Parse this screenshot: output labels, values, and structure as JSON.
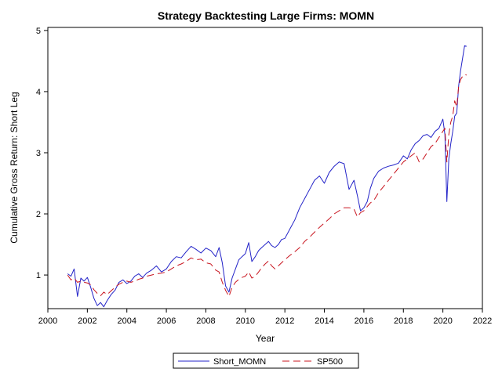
{
  "chart_data": {
    "type": "line",
    "title": "Strategy Backtesting Large Firms: MOMN",
    "xlabel": "Year",
    "ylabel": "Cumulative Gross Return: Short Leg",
    "xlim": [
      2000,
      2022
    ],
    "ylim": [
      0.45,
      5.05
    ],
    "xticks": [
      2000,
      2002,
      2004,
      2006,
      2008,
      2010,
      2012,
      2014,
      2016,
      2018,
      2020,
      2022
    ],
    "yticks": [
      1,
      2,
      3,
      4,
      5
    ],
    "legend_position": "bottom",
    "series": [
      {
        "name": "Short_MOMN",
        "color": "#2323c8",
        "dash": "solid",
        "x": [
          2001.0,
          2001.17,
          2001.33,
          2001.5,
          2001.67,
          2001.83,
          2002.0,
          2002.17,
          2002.33,
          2002.5,
          2002.67,
          2002.83,
          2003.0,
          2003.2,
          2003.4,
          2003.6,
          2003.8,
          2004.0,
          2004.2,
          2004.4,
          2004.6,
          2004.8,
          2005.0,
          2005.25,
          2005.5,
          2005.75,
          2006.0,
          2006.25,
          2006.5,
          2006.75,
          2007.0,
          2007.25,
          2007.5,
          2007.75,
          2008.0,
          2008.25,
          2008.5,
          2008.67,
          2008.83,
          2009.0,
          2009.17,
          2009.33,
          2009.5,
          2009.67,
          2009.83,
          2010.0,
          2010.17,
          2010.33,
          2010.5,
          2010.67,
          2010.83,
          2011.0,
          2011.17,
          2011.33,
          2011.5,
          2011.67,
          2011.83,
          2012.0,
          2012.25,
          2012.5,
          2012.75,
          2013.0,
          2013.25,
          2013.5,
          2013.75,
          2014.0,
          2014.25,
          2014.5,
          2014.75,
          2015.0,
          2015.25,
          2015.5,
          2015.67,
          2015.83,
          2016.0,
          2016.17,
          2016.33,
          2016.5,
          2016.75,
          2017.0,
          2017.25,
          2017.5,
          2017.75,
          2018.0,
          2018.2,
          2018.4,
          2018.6,
          2018.8,
          2019.0,
          2019.2,
          2019.4,
          2019.6,
          2019.8,
          2020.0,
          2020.1,
          2020.2,
          2020.3,
          2020.4,
          2020.5,
          2020.6,
          2020.7,
          2020.8,
          2020.9,
          2021.0,
          2021.1,
          2021.2
        ],
        "values": [
          1.02,
          0.98,
          1.1,
          0.65,
          0.95,
          0.9,
          0.96,
          0.8,
          0.62,
          0.5,
          0.55,
          0.48,
          0.58,
          0.68,
          0.75,
          0.88,
          0.92,
          0.86,
          0.9,
          0.98,
          1.02,
          0.96,
          1.03,
          1.08,
          1.15,
          1.05,
          1.1,
          1.22,
          1.3,
          1.28,
          1.38,
          1.47,
          1.42,
          1.36,
          1.44,
          1.4,
          1.3,
          1.45,
          1.2,
          0.82,
          0.72,
          0.95,
          1.1,
          1.25,
          1.3,
          1.35,
          1.53,
          1.22,
          1.3,
          1.4,
          1.45,
          1.5,
          1.55,
          1.48,
          1.45,
          1.5,
          1.58,
          1.6,
          1.75,
          1.9,
          2.1,
          2.25,
          2.4,
          2.55,
          2.62,
          2.5,
          2.68,
          2.78,
          2.85,
          2.82,
          2.4,
          2.55,
          2.3,
          2.05,
          2.1,
          2.2,
          2.42,
          2.58,
          2.7,
          2.75,
          2.78,
          2.8,
          2.83,
          2.95,
          2.9,
          3.05,
          3.15,
          3.2,
          3.28,
          3.3,
          3.25,
          3.35,
          3.4,
          3.55,
          3.3,
          2.2,
          2.9,
          3.15,
          3.35,
          3.6,
          3.65,
          4.1,
          4.35,
          4.55,
          4.75,
          4.74
        ],
        "x_end": 2021.2
      },
      {
        "name": "SP500",
        "color": "#c8141e",
        "dash": "dashed",
        "x": [
          2001.0,
          2001.17,
          2001.33,
          2001.5,
          2001.67,
          2001.83,
          2002.0,
          2002.17,
          2002.33,
          2002.5,
          2002.67,
          2002.83,
          2003.0,
          2003.2,
          2003.4,
          2003.6,
          2003.8,
          2004.0,
          2004.2,
          2004.4,
          2004.6,
          2004.8,
          2005.0,
          2005.25,
          2005.5,
          2005.75,
          2006.0,
          2006.25,
          2006.5,
          2006.75,
          2007.0,
          2007.25,
          2007.5,
          2007.75,
          2008.0,
          2008.25,
          2008.5,
          2008.67,
          2008.83,
          2009.0,
          2009.17,
          2009.33,
          2009.5,
          2009.67,
          2009.83,
          2010.0,
          2010.17,
          2010.33,
          2010.5,
          2010.67,
          2010.83,
          2011.0,
          2011.17,
          2011.33,
          2011.5,
          2011.67,
          2011.83,
          2012.0,
          2012.25,
          2012.5,
          2012.75,
          2013.0,
          2013.25,
          2013.5,
          2013.75,
          2014.0,
          2014.25,
          2014.5,
          2014.75,
          2015.0,
          2015.25,
          2015.5,
          2015.67,
          2015.83,
          2016.0,
          2016.17,
          2016.33,
          2016.5,
          2016.75,
          2017.0,
          2017.25,
          2017.5,
          2017.75,
          2018.0,
          2018.2,
          2018.4,
          2018.6,
          2018.8,
          2019.0,
          2019.2,
          2019.4,
          2019.6,
          2019.8,
          2020.0,
          2020.1,
          2020.2,
          2020.3,
          2020.4,
          2020.5,
          2020.6,
          2020.7,
          2020.8,
          2020.9,
          2021.0,
          2021.1,
          2021.2
        ],
        "values": [
          1.0,
          0.92,
          0.95,
          0.88,
          0.9,
          0.88,
          0.87,
          0.84,
          0.76,
          0.7,
          0.66,
          0.72,
          0.68,
          0.74,
          0.8,
          0.85,
          0.88,
          0.9,
          0.88,
          0.9,
          0.93,
          0.95,
          0.98,
          1.0,
          1.02,
          1.03,
          1.05,
          1.1,
          1.15,
          1.18,
          1.22,
          1.28,
          1.25,
          1.26,
          1.2,
          1.18,
          1.08,
          1.05,
          0.88,
          0.75,
          0.65,
          0.8,
          0.88,
          0.93,
          0.96,
          0.98,
          1.05,
          0.95,
          0.98,
          1.05,
          1.12,
          1.18,
          1.23,
          1.15,
          1.1,
          1.15,
          1.2,
          1.25,
          1.32,
          1.38,
          1.45,
          1.55,
          1.62,
          1.7,
          1.78,
          1.85,
          1.92,
          2.0,
          2.05,
          2.1,
          2.1,
          2.08,
          1.95,
          2.02,
          2.05,
          2.12,
          2.18,
          2.22,
          2.35,
          2.45,
          2.55,
          2.65,
          2.75,
          2.85,
          2.9,
          2.95,
          3.0,
          2.85,
          2.9,
          3.0,
          3.1,
          3.15,
          3.25,
          3.35,
          3.4,
          2.85,
          3.3,
          3.5,
          3.6,
          3.85,
          3.75,
          4.1,
          4.2,
          4.25,
          4.28,
          4.27
        ],
        "x_end": 2021.2
      }
    ]
  }
}
